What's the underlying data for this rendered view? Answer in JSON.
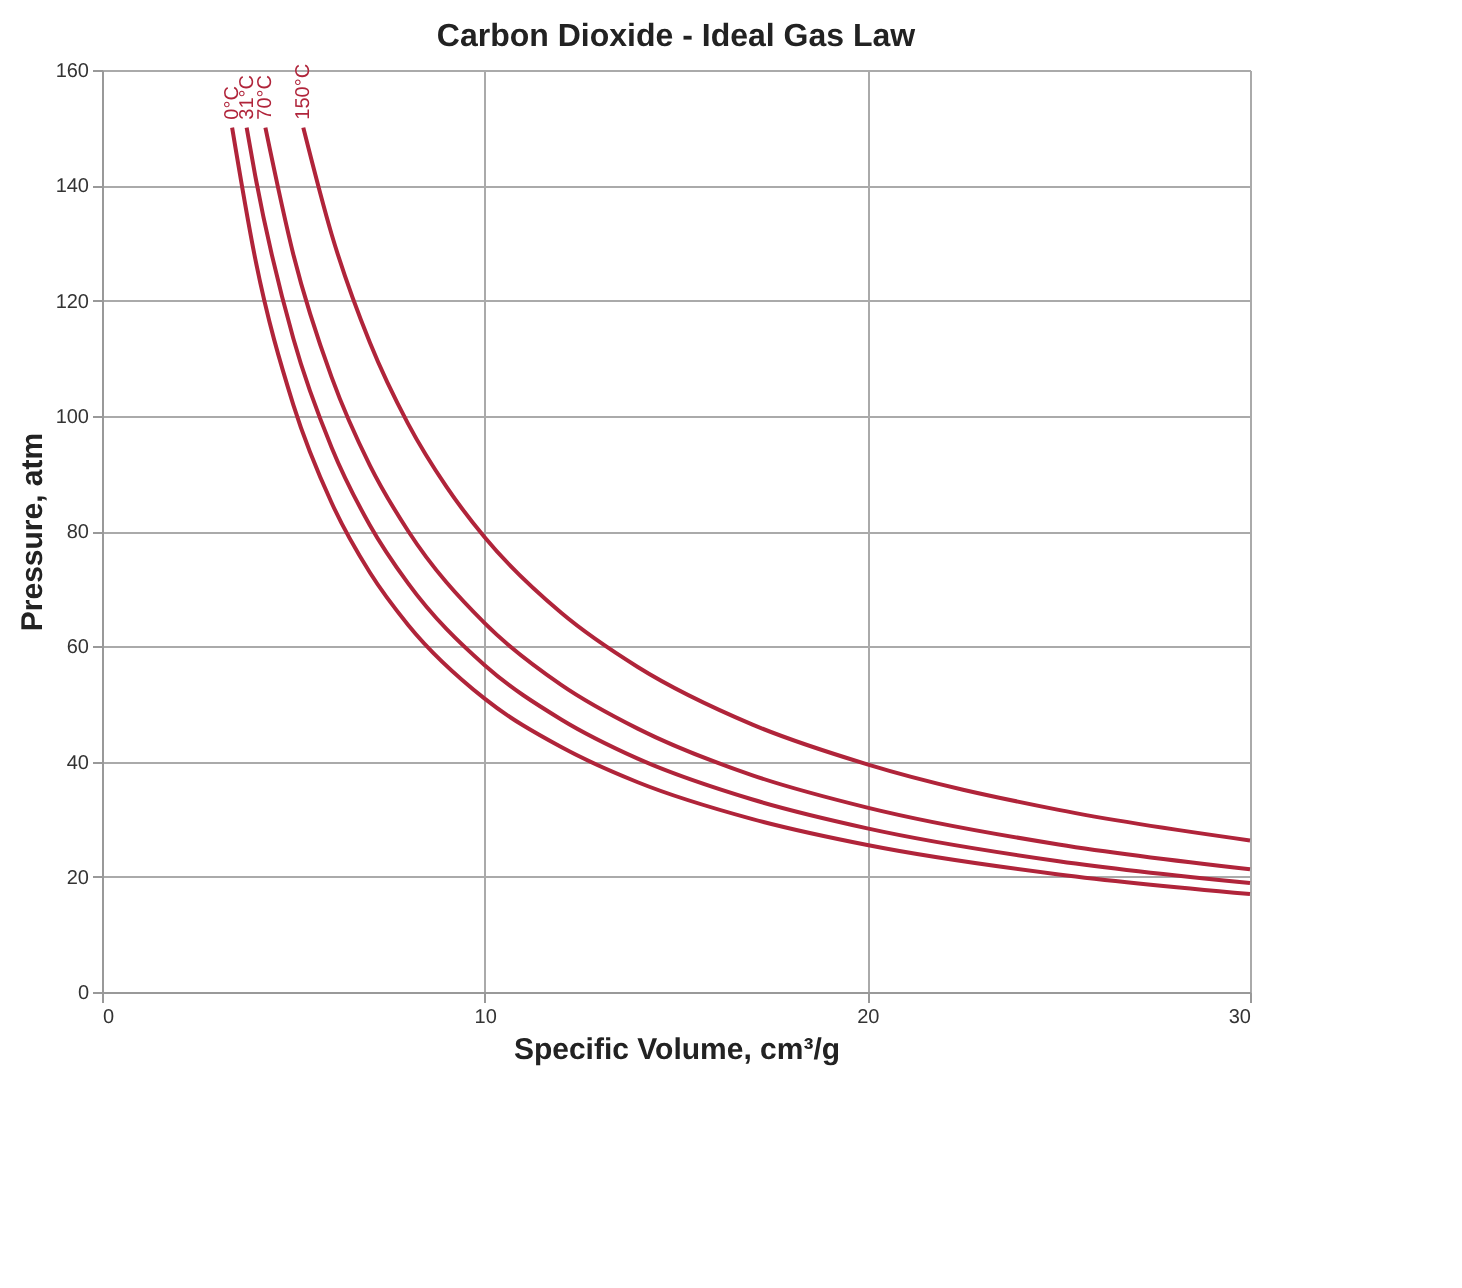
{
  "chart_data": {
    "type": "line",
    "title": "Carbon Dioxide - Ideal Gas Law",
    "xlabel": "Specific Volume, cm³/g",
    "ylabel": "Pressure, atm",
    "xlim": [
      0,
      30
    ],
    "xticks": [
      0,
      10,
      20,
      30
    ],
    "ylim": [
      0,
      160
    ],
    "yticks": [
      0,
      20,
      40,
      60,
      80,
      100,
      120,
      140,
      160
    ],
    "grid": true,
    "marker": "none",
    "line_style": "solid",
    "series": [
      {
        "name": "0°C",
        "color": "#b0243a",
        "x": [
          3.4,
          4,
          5,
          6,
          7,
          8,
          10,
          12,
          14,
          17,
          20,
          25,
          30
        ],
        "values": [
          150,
          127.4,
          101.9,
          84.9,
          72.8,
          63.7,
          50.9,
          42.5,
          36.4,
          30.0,
          25.5,
          20.4,
          17.0
        ]
      },
      {
        "name": "31°C",
        "color": "#b0243a",
        "x": [
          3.78,
          4,
          5,
          6,
          7,
          8,
          10,
          12,
          14,
          17,
          20,
          25,
          30
        ],
        "values": [
          150,
          141.8,
          113.4,
          94.5,
          81.0,
          70.9,
          56.7,
          47.3,
          40.5,
          33.4,
          28.4,
          22.7,
          18.9
        ]
      },
      {
        "name": "70°C",
        "color": "#b0243a",
        "x": [
          4.27,
          5,
          6,
          7,
          8,
          10,
          12,
          14,
          17,
          20,
          25,
          30
        ],
        "values": [
          150,
          128.0,
          106.7,
          91.4,
          80.0,
          64.0,
          53.3,
          45.7,
          37.6,
          32.0,
          25.6,
          21.3
        ]
      },
      {
        "name": "150°C",
        "color": "#b0243a",
        "x": [
          5.26,
          6,
          7,
          8,
          9,
          10,
          12,
          14,
          17,
          20,
          25,
          30
        ],
        "values": [
          150,
          131.5,
          112.7,
          98.6,
          87.7,
          78.9,
          65.8,
          56.4,
          46.4,
          39.5,
          31.6,
          26.3
        ]
      }
    ]
  }
}
